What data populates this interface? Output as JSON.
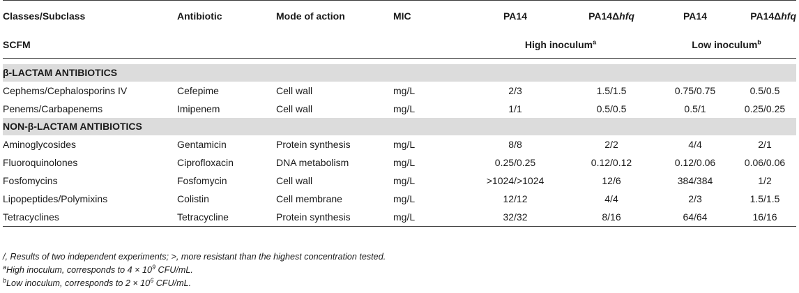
{
  "header": {
    "col_class": "Classes/Subclass",
    "col_antibiotic": "Antibiotic",
    "col_mode": "Mode of action",
    "col_mic": "MIC",
    "col_pa14_a": "PA14",
    "col_mut_a_prefix": "PA14Δ",
    "col_mut_a_italic": "hfq",
    "col_pa14_b": "PA14",
    "col_mut_b_prefix": "PA14Δ",
    "col_mut_b_italic": "hfq"
  },
  "subheader": {
    "medium": "SCFM",
    "high_inoculum": "High inoculum",
    "high_mark": "a",
    "low_inoculum": "Low inoculum",
    "low_mark": "b"
  },
  "sections": [
    {
      "title": "β-LACTAM ANTIBIOTICS",
      "rows": [
        {
          "cls": "Cephems/Cephalosporins IV",
          "ab": "Cefepime",
          "mode": "Cell wall",
          "mic": "mg/L",
          "v1": "2/3",
          "v2": "1.5/1.5",
          "v3": "0.75/0.75",
          "v4": "0.5/0.5"
        },
        {
          "cls": "Penems/Carbapenems",
          "ab": "Imipenem",
          "mode": "Cell wall",
          "mic": "mg/L",
          "v1": "1/1",
          "v2": "0.5/0.5",
          "v3": "0.5/1",
          "v4": "0.25/0.25"
        }
      ]
    },
    {
      "title": "NON-β-LACTAM ANTIBIOTICS",
      "rows": [
        {
          "cls": "Aminoglycosides",
          "ab": "Gentamicin",
          "mode": "Protein synthesis",
          "mic": "mg/L",
          "v1": "8/8",
          "v2": "2/2",
          "v3": "4/4",
          "v4": "2/1"
        },
        {
          "cls": "Fluoroquinolones",
          "ab": "Ciprofloxacin",
          "mode": "DNA metabolism",
          "mic": "mg/L",
          "v1": "0.25/0.25",
          "v2": "0.12/0.12",
          "v3": "0.12/0.06",
          "v4": "0.06/0.06"
        },
        {
          "cls": "Fosfomycins",
          "ab": "Fosfomycin",
          "mode": "Cell wall",
          "mic": "mg/L",
          "v1": ">1024/>1024",
          "v2": "12/6",
          "v3": "384/384",
          "v4": "1/2"
        },
        {
          "cls": "Lipopeptides/Polymixins",
          "ab": "Colistin",
          "mode": "Cell membrane",
          "mic": "mg/L",
          "v1": "12/12",
          "v2": "4/4",
          "v3": "2/3",
          "v4": "1.5/1.5"
        },
        {
          "cls": "Tetracyclines",
          "ab": "Tetracycline",
          "mode": "Protein synthesis",
          "mic": "mg/L",
          "v1": "32/32",
          "v2": "8/16",
          "v3": "64/64",
          "v4": "16/16"
        }
      ]
    }
  ],
  "footnotes": {
    "general": "/, Results of two independent experiments; >, more resistant than the highest concentration tested.",
    "a_mark": "a",
    "a_text_before": "High inoculum, corresponds to 4 × 10",
    "a_exp": "9",
    "a_text_after": " CFU/mL.",
    "b_mark": "b",
    "b_text_before": "Low inoculum, corresponds to 2 × 10",
    "b_exp": "6",
    "b_text_after": " CFU/mL."
  }
}
